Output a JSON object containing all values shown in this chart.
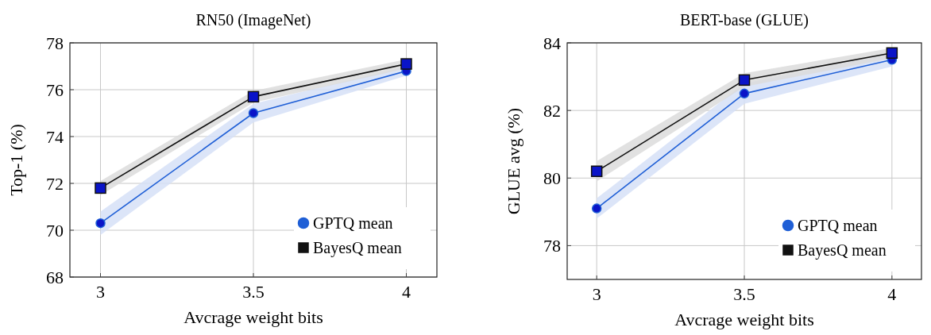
{
  "chart_data": [
    {
      "type": "line",
      "title": "RN50 (ImageNet)",
      "xlabel": "Avcrage weight bits",
      "ylabel": "Top-1 (%)",
      "x": [
        3,
        3.5,
        4
      ],
      "xlim": [
        2.9,
        4.1
      ],
      "xticks": [
        3,
        3.5,
        4
      ],
      "ylim": [
        68,
        78
      ],
      "yticks": [
        68,
        70,
        72,
        74,
        76,
        78
      ],
      "grid": true,
      "legend": "bottom right",
      "series": [
        {
          "name": "GPTQ mean",
          "color": "#1f5fd6",
          "marker": "circle",
          "values": [
            70.3,
            75.0,
            76.8
          ],
          "lower": [
            69.8,
            74.6,
            76.6
          ],
          "upper": [
            70.8,
            75.4,
            77.0
          ]
        },
        {
          "name": "BayesQ mean",
          "color": "#111111",
          "marker": "square",
          "values": [
            71.8,
            75.7,
            77.1
          ],
          "lower": [
            71.5,
            75.45,
            76.9
          ],
          "upper": [
            72.1,
            75.95,
            77.3
          ]
        }
      ]
    },
    {
      "type": "line",
      "title": "BERT-base (GLUE)",
      "xlabel": "Avcrage weight bits",
      "ylabel": "GLUE avg (%)",
      "x": [
        3,
        3.5,
        4
      ],
      "xlim": [
        2.9,
        4.1
      ],
      "xticks": [
        3,
        3.5,
        4
      ],
      "ylim": [
        77,
        84
      ],
      "yticks": [
        78,
        80,
        82,
        84
      ],
      "grid": true,
      "legend": "bottom right",
      "series": [
        {
          "name": "GPTQ mean",
          "color": "#1f5fd6",
          "marker": "circle",
          "values": [
            79.1,
            82.5,
            83.5
          ],
          "lower": [
            78.8,
            82.2,
            83.3
          ],
          "upper": [
            79.4,
            82.8,
            83.7
          ]
        },
        {
          "name": "BayesQ mean",
          "color": "#111111",
          "marker": "square",
          "values": [
            80.2,
            82.9,
            83.7
          ],
          "lower": [
            79.9,
            82.7,
            83.55
          ],
          "upper": [
            80.5,
            83.1,
            83.85
          ]
        }
      ]
    }
  ]
}
